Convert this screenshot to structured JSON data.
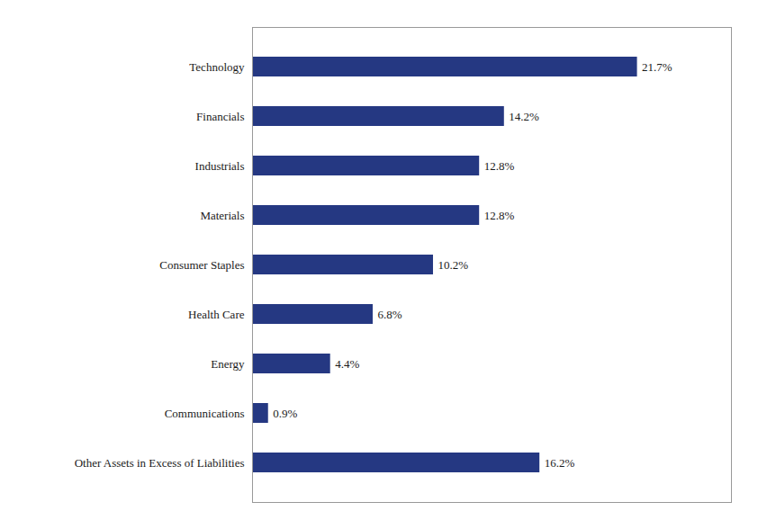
{
  "chart_data": {
    "type": "bar",
    "orientation": "horizontal",
    "categories": [
      "Technology",
      "Financials",
      "Industrials",
      "Materials",
      "Consumer Staples",
      "Health Care",
      "Energy",
      "Communications",
      "Other Assets in Excess of Liabilities"
    ],
    "values": [
      21.7,
      14.2,
      12.8,
      12.8,
      10.2,
      6.8,
      4.4,
      0.9,
      16.2
    ],
    "value_labels": [
      "21.7%",
      "14.2%",
      "12.8%",
      "12.8%",
      "10.2%",
      "6.8%",
      "4.4%",
      "0.9%",
      "16.2%"
    ],
    "color": "#253882",
    "xlim": [
      0,
      27
    ],
    "data_labels": true,
    "tick_labels": "y"
  }
}
